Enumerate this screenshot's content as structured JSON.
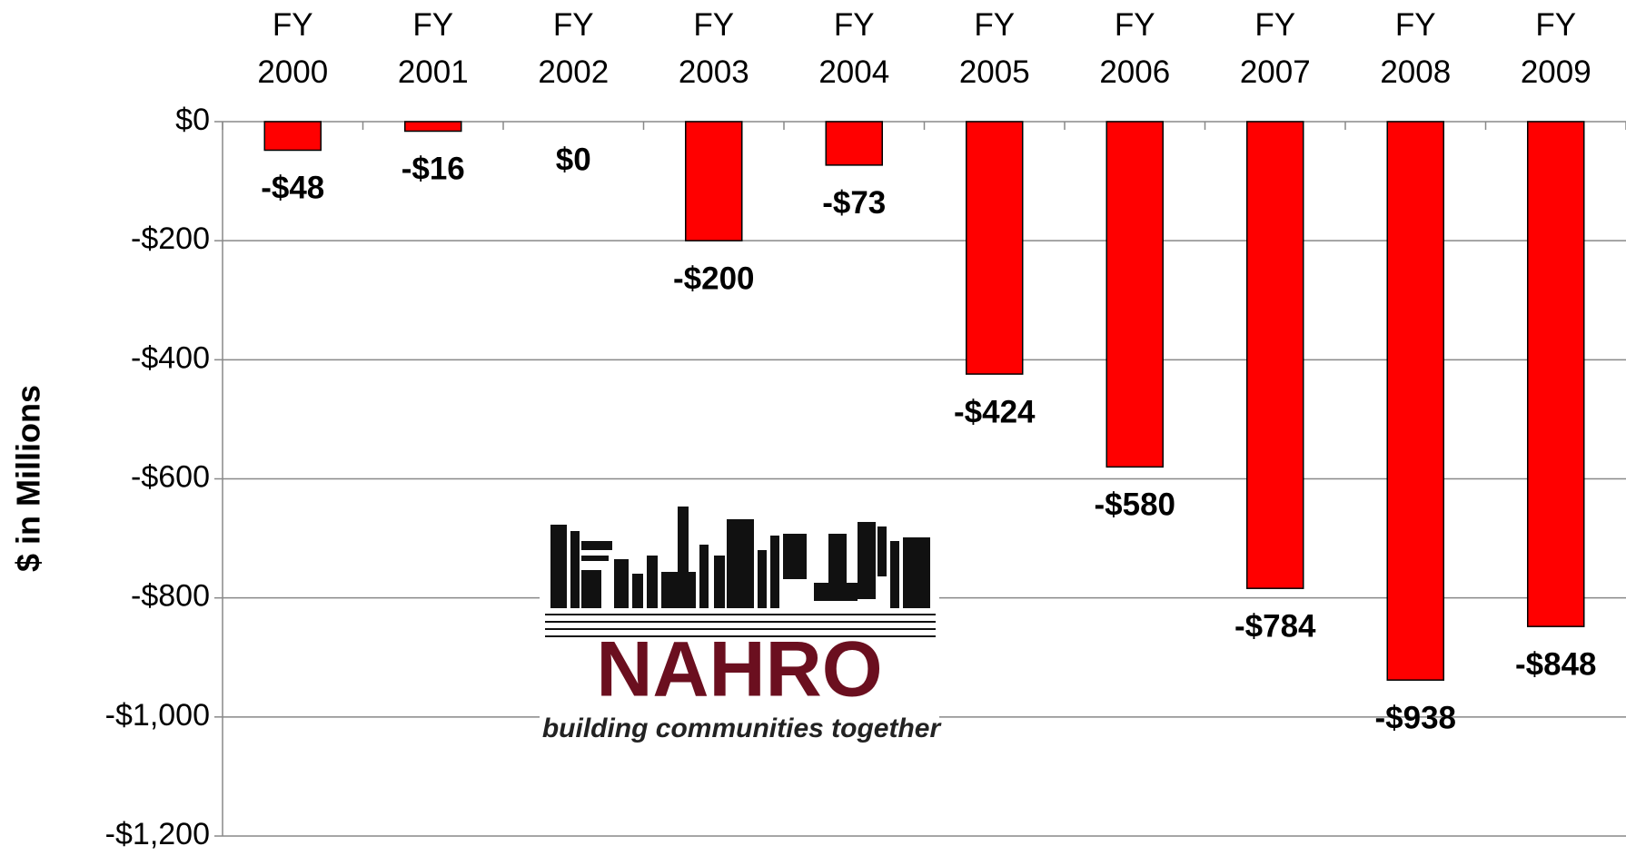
{
  "chart_data": {
    "type": "bar",
    "y_label": "$ in Millions",
    "categories": [
      "FY 2000",
      "FY 2001",
      "FY 2002",
      "FY 2003",
      "FY 2004",
      "FY 2005",
      "FY 2006",
      "FY 2007",
      "FY 2008",
      "FY 2009"
    ],
    "values": [
      -48,
      -16,
      0,
      -200,
      -73,
      -424,
      -580,
      -784,
      -938,
      -848
    ],
    "value_labels": [
      "-$48",
      "-$16",
      "$0",
      "-$200",
      "-$73",
      "-$424",
      "-$580",
      "-$784",
      "-$938",
      "-$848"
    ],
    "color": "#ff0000",
    "ylim": [
      -1200,
      0
    ],
    "yticks": [
      {
        "value": 0,
        "label": "$0"
      },
      {
        "value": -200,
        "label": "-$200"
      },
      {
        "value": -400,
        "label": "-$400"
      },
      {
        "value": -600,
        "label": "-$600"
      },
      {
        "value": -800,
        "label": "-$800"
      },
      {
        "value": -1000,
        "label": "-$1,000"
      },
      {
        "value": -1200,
        "label": "-$1,200"
      }
    ],
    "grid": true
  },
  "logo": {
    "name": "NAHRO",
    "tagline": "building communities together"
  }
}
